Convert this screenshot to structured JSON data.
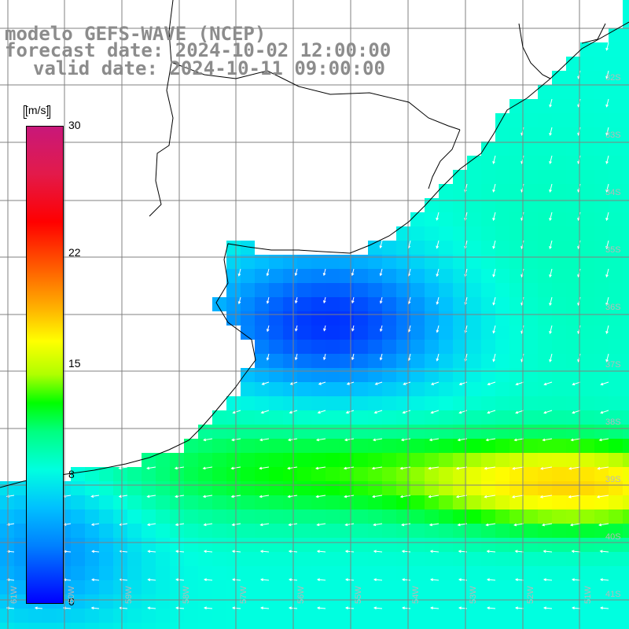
{
  "title": {
    "model": "modelo GEFS-WAVE (NCEP)",
    "forecast": "forecast date: 2024-10-02 12:00:00",
    "valid": "valid date: 2024-10-11 09:00:00"
  },
  "colorbar": {
    "unit": "[m/s]",
    "ticks": [
      {
        "label": "30",
        "value": 30
      },
      {
        "label": "22",
        "value": 22
      },
      {
        "label": "15",
        "value": 15
      },
      {
        "label": "8",
        "value": 8
      },
      {
        "label": "0",
        "value": 0
      }
    ],
    "min": 0,
    "max": 30
  },
  "lat_labels": [
    "32S",
    "33S",
    "34S",
    "35S",
    "36S",
    "37S",
    "38S",
    "39S",
    "40S",
    "41S"
  ],
  "lon_labels": [
    "61W",
    "60W",
    "59W",
    "58W",
    "57W",
    "56W",
    "55W",
    "54W",
    "53W",
    "52W",
    "51W"
  ],
  "colors": {
    "coast": "#000000",
    "grid": "#808080",
    "land": "#ffffff",
    "arrows": "#ffffff"
  }
}
